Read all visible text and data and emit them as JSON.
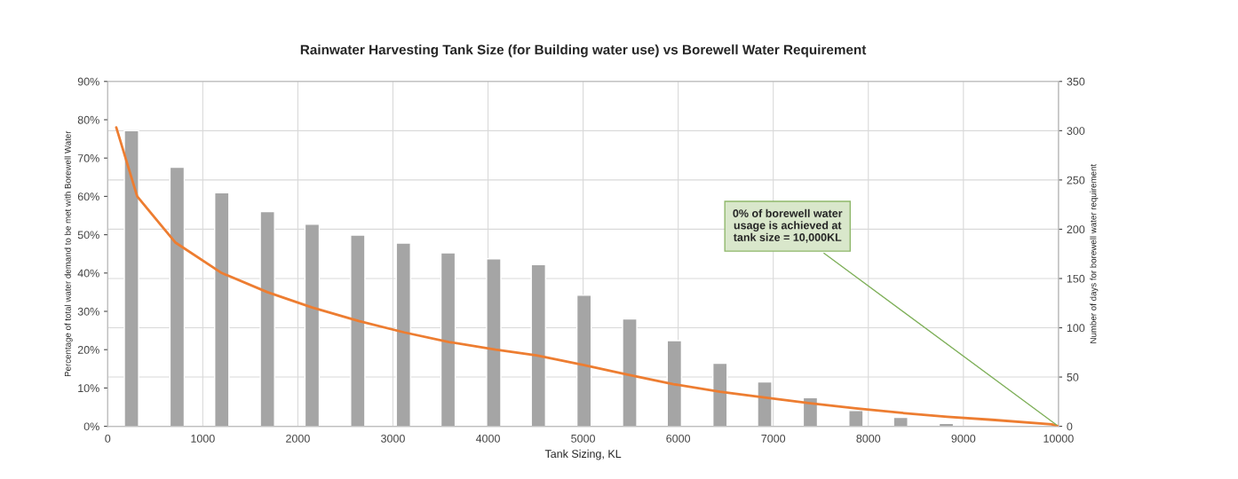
{
  "chart_data": {
    "type": "bar",
    "title": "Rainwater Harvesting Tank Size (for Building water use) vs Borewell Water Requirement",
    "xlabel": "Tank Sizing, KL",
    "ylabel": "Percentage of total water demand to be met with Borewell Water",
    "y2label": "Number of days for borewell water requirement",
    "series": [
      {
        "axis": "y2",
        "color": "#a5a5a5",
        "x": [
          250,
          730,
          1200,
          1680,
          2150,
          2630,
          3110,
          3580,
          4060,
          4530,
          5010,
          5490,
          5960,
          6440,
          6910,
          7390,
          7870,
          8340,
          8820,
          9290
        ],
        "values": [
          300,
          263,
          237,
          218,
          205,
          194,
          186,
          176,
          170,
          164,
          133,
          109,
          87,
          64,
          45,
          29,
          16,
          9,
          3,
          1
        ]
      },
      {
        "type": "line",
        "color": "#ed7d31",
        "x": [
          90,
          310,
          710,
          1200,
          1680,
          2150,
          2640,
          3120,
          3590,
          4080,
          4510,
          5000,
          5470,
          5950,
          6440,
          6910,
          7390,
          7870,
          8350,
          8830,
          9300,
          9930,
          10000
        ],
        "values": [
          78,
          60,
          48,
          40,
          35,
          31,
          27.5,
          24.5,
          22,
          20,
          18.5,
          16,
          13.5,
          11,
          9,
          7.5,
          6,
          4.7,
          3.5,
          2.5,
          1.7,
          0.5,
          0
        ]
      }
    ],
    "xlim": [
      0,
      10000
    ],
    "xticks": [
      0,
      1000,
      2000,
      3000,
      4000,
      5000,
      6000,
      7000,
      8000,
      9000,
      10000
    ],
    "ylim": [
      0,
      90
    ],
    "yticks": [
      {
        "value": 0,
        "label": "0%"
      },
      {
        "value": 10,
        "label": "10%"
      },
      {
        "value": 20,
        "label": "20%"
      },
      {
        "value": 30,
        "label": "30%"
      },
      {
        "value": 40,
        "label": "40%"
      },
      {
        "value": 50,
        "label": "50%"
      },
      {
        "value": 60,
        "label": "60%"
      },
      {
        "value": 70,
        "label": "70%"
      },
      {
        "value": 80,
        "label": "80%"
      },
      {
        "value": 90,
        "label": "90%"
      }
    ],
    "y2lim": [
      0,
      350
    ],
    "y2ticks": [
      0,
      50,
      100,
      150,
      200,
      250,
      300,
      350
    ],
    "grid": true,
    "annotations": [
      {
        "text": "0% of borewell water\nusage is achieved at\ntank size = 10,000KL",
        "x": 10000,
        "y": 0
      }
    ]
  }
}
